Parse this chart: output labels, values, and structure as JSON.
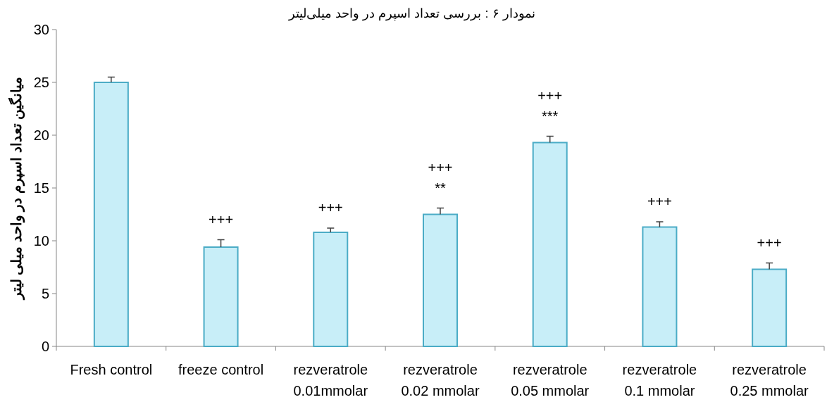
{
  "chart_data": {
    "type": "bar",
    "title": "نمودار ۶ : بررسی تعداد اسپرم در واحد میلی‌لیتر",
    "ylabel": "میانگین تعداد اسپرم در واحد میلی لیتر",
    "categories": [
      "Fresh control",
      "freeze control",
      "rezveratrole\n0.01mmolar",
      "rezveratrole\n0.02 mmolar",
      "rezveratrole\n0.05 mmolar",
      "rezveratrole\n0.1 mmolar",
      "rezveratrole\n0.25 mmolar"
    ],
    "values": [
      25.0,
      9.4,
      10.8,
      12.5,
      19.3,
      11.3,
      7.3
    ],
    "errors": [
      0.5,
      0.7,
      0.4,
      0.6,
      0.6,
      0.5,
      0.6
    ],
    "color": "#c8eef8",
    "ylim": [
      0,
      30
    ],
    "yticks": [
      0,
      5,
      10,
      15,
      20,
      25,
      30
    ],
    "grid": false,
    "annotations": [
      "+++",
      "+++",
      "**",
      "+++",
      "***",
      "+++",
      "+++",
      "+++"
    ]
  }
}
